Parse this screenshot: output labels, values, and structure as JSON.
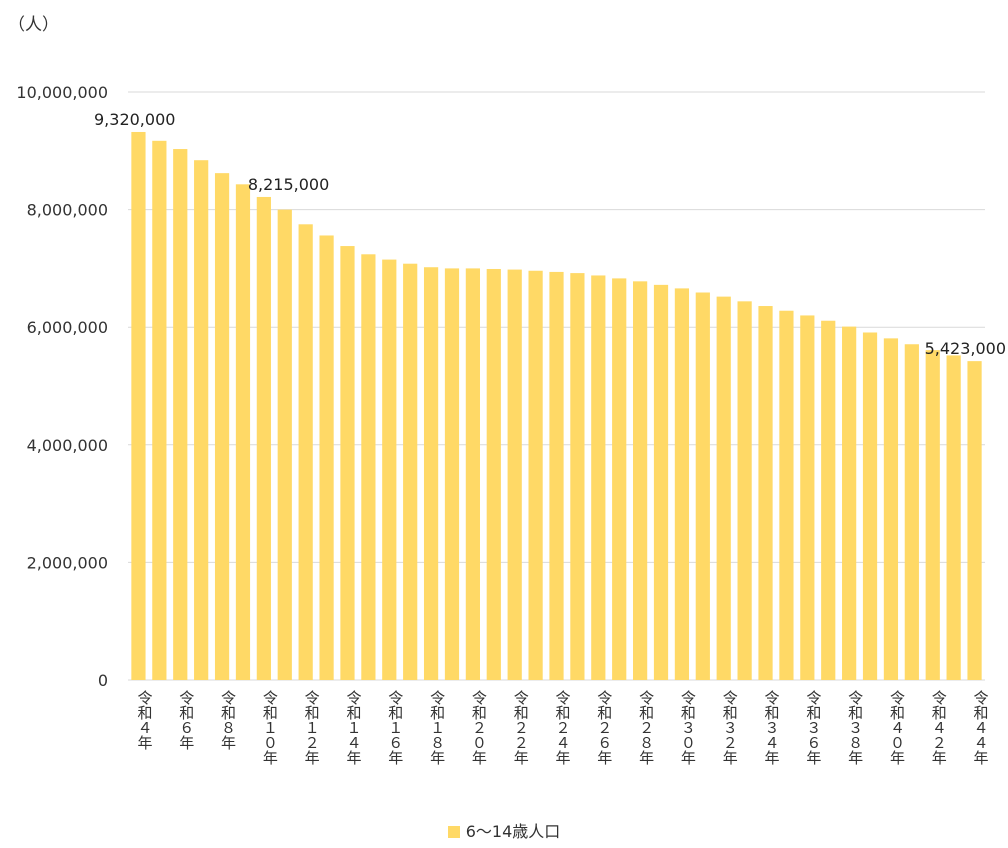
{
  "chart_data": {
    "type": "bar",
    "unit_label": "（人）",
    "categories": [
      "令和４年",
      "令和５年",
      "令和６年",
      "令和７年",
      "令和８年",
      "令和９年",
      "令和１０年",
      "令和１１年",
      "令和１２年",
      "令和１３年",
      "令和１４年",
      "令和１５年",
      "令和１６年",
      "令和１７年",
      "令和１８年",
      "令和１９年",
      "令和２０年",
      "令和２１年",
      "令和２２年",
      "令和２３年",
      "令和２４年",
      "令和２５年",
      "令和２６年",
      "令和２７年",
      "令和２８年",
      "令和２９年",
      "令和３０年",
      "令和３１年",
      "令和３２年",
      "令和３３年",
      "令和３４年",
      "令和３５年",
      "令和３６年",
      "令和３７年",
      "令和３８年",
      "令和３９年",
      "令和４０年",
      "令和４１年",
      "令和４２年",
      "令和４３年",
      "令和４４年"
    ],
    "shown_category_labels": [
      "令和４年",
      "令和６年",
      "令和８年",
      "令和１０年",
      "令和１２年",
      "令和１４年",
      "令和１６年",
      "令和１８年",
      "令和２０年",
      "令和２２年",
      "令和２４年",
      "令和２６年",
      "令和２８年",
      "令和３０年",
      "令和３２年",
      "令和３４年",
      "令和３６年",
      "令和３８年",
      "令和４０年",
      "令和４２年",
      "令和４４年"
    ],
    "series": [
      {
        "name": "6～14歳人口",
        "color": "#FFD966",
        "values": [
          9320000,
          9170000,
          9030000,
          8840000,
          8620000,
          8430000,
          8215000,
          8000000,
          7750000,
          7560000,
          7380000,
          7240000,
          7150000,
          7080000,
          7020000,
          7000000,
          7000000,
          6990000,
          6980000,
          6960000,
          6940000,
          6920000,
          6880000,
          6830000,
          6780000,
          6720000,
          6660000,
          6590000,
          6520000,
          6440000,
          6360000,
          6280000,
          6200000,
          6110000,
          6010000,
          5910000,
          5810000,
          5710000,
          5610000,
          5520000,
          5423000
        ]
      }
    ],
    "data_labels": [
      {
        "index": 0,
        "text": "9,320,000"
      },
      {
        "index": 6,
        "text": "8,215,000"
      },
      {
        "index": 40,
        "text": "5,423,000"
      }
    ],
    "ylim": [
      0,
      10000000
    ],
    "y_ticks": [
      0,
      2000000,
      4000000,
      6000000,
      8000000,
      10000000
    ],
    "y_tick_labels": [
      "0",
      "2,000,000",
      "4,000,000",
      "6,000,000",
      "8,000,000",
      "10,000,000"
    ],
    "grid": true,
    "legend_position": "bottom"
  }
}
